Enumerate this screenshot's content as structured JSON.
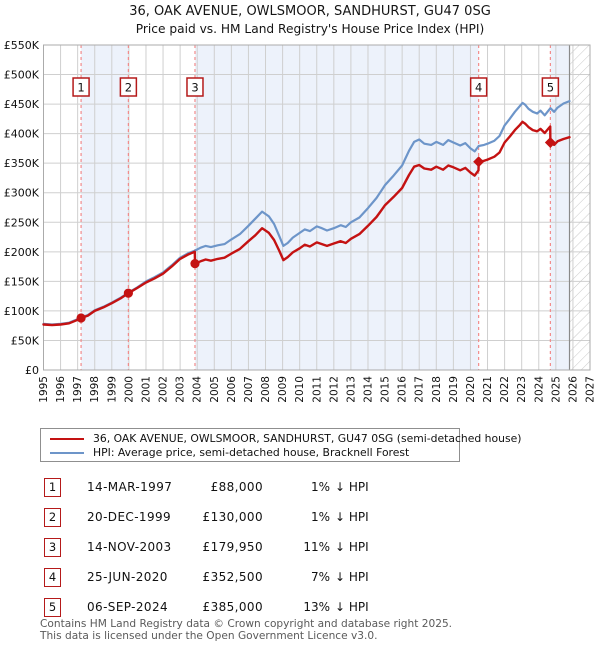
{
  "title": "36, OAK AVENUE, OWLSMOOR, SANDHURST, GU47 0SG",
  "subtitle": "Price paid vs. HM Land Registry's House Price Index (HPI)",
  "chart_data": {
    "type": "line",
    "x_range": [
      1995,
      2027
    ],
    "y_range_k": [
      0,
      550
    ],
    "y_unit": "GBP thousands",
    "grid": true,
    "x_ticks": [
      1995,
      1996,
      1997,
      1998,
      1999,
      2000,
      2001,
      2002,
      2003,
      2004,
      2005,
      2006,
      2007,
      2008,
      2009,
      2010,
      2011,
      2012,
      2013,
      2014,
      2015,
      2016,
      2017,
      2018,
      2019,
      2020,
      2021,
      2022,
      2023,
      2024,
      2025,
      2026,
      2027
    ],
    "y_ticks_k": [
      0,
      50,
      100,
      150,
      200,
      250,
      300,
      350,
      400,
      450,
      500,
      550
    ],
    "y_tick_labels": [
      "£0",
      "£50K",
      "£100K",
      "£150K",
      "£200K",
      "£250K",
      "£300K",
      "£350K",
      "£400K",
      "£450K",
      "£500K",
      "£550K"
    ],
    "series": [
      {
        "name": "HPI: Average price, semi-detached house, Bracknell Forest",
        "color": "#6d95c9",
        "width": 2.2,
        "points": [
          [
            1995,
            78
          ],
          [
            1995.5,
            77
          ],
          [
            1996,
            78
          ],
          [
            1996.5,
            80
          ],
          [
            1997,
            86
          ],
          [
            1997.2,
            89
          ],
          [
            1997.6,
            93
          ],
          [
            1998,
            101
          ],
          [
            1998.5,
            107
          ],
          [
            1999,
            114
          ],
          [
            1999.5,
            122
          ],
          [
            1999.97,
            131
          ],
          [
            2000.5,
            140
          ],
          [
            2001,
            150
          ],
          [
            2001.5,
            157
          ],
          [
            2002,
            165
          ],
          [
            2002.5,
            177
          ],
          [
            2003,
            190
          ],
          [
            2003.5,
            198
          ],
          [
            2003.87,
            202
          ],
          [
            2004.2,
            207
          ],
          [
            2004.5,
            210
          ],
          [
            2004.8,
            208
          ],
          [
            2005.2,
            211
          ],
          [
            2005.6,
            213
          ],
          [
            2006,
            221
          ],
          [
            2006.5,
            230
          ],
          [
            2007,
            244
          ],
          [
            2007.4,
            256
          ],
          [
            2007.8,
            268
          ],
          [
            2008.2,
            260
          ],
          [
            2008.5,
            247
          ],
          [
            2008.8,
            227
          ],
          [
            2009.05,
            210
          ],
          [
            2009.3,
            215
          ],
          [
            2009.6,
            224
          ],
          [
            2010,
            232
          ],
          [
            2010.3,
            238
          ],
          [
            2010.6,
            235
          ],
          [
            2011,
            243
          ],
          [
            2011.3,
            240
          ],
          [
            2011.6,
            236
          ],
          [
            2012,
            240
          ],
          [
            2012.4,
            245
          ],
          [
            2012.7,
            242
          ],
          [
            2013,
            250
          ],
          [
            2013.5,
            258
          ],
          [
            2014,
            274
          ],
          [
            2014.5,
            291
          ],
          [
            2015,
            313
          ],
          [
            2015.5,
            329
          ],
          [
            2016,
            346
          ],
          [
            2016.4,
            371
          ],
          [
            2016.7,
            386
          ],
          [
            2017,
            390
          ],
          [
            2017.3,
            383
          ],
          [
            2017.7,
            381
          ],
          [
            2018,
            386
          ],
          [
            2018.4,
            381
          ],
          [
            2018.7,
            389
          ],
          [
            2019,
            385
          ],
          [
            2019.4,
            380
          ],
          [
            2019.7,
            384
          ],
          [
            2020,
            375
          ],
          [
            2020.25,
            370
          ],
          [
            2020.48,
            379
          ],
          [
            2020.8,
            381
          ],
          [
            2021,
            383
          ],
          [
            2021.4,
            388
          ],
          [
            2021.7,
            396
          ],
          [
            2022,
            414
          ],
          [
            2022.3,
            425
          ],
          [
            2022.6,
            437
          ],
          [
            2022.9,
            447
          ],
          [
            2023.05,
            452
          ],
          [
            2023.2,
            449
          ],
          [
            2023.4,
            442
          ],
          [
            2023.65,
            437
          ],
          [
            2023.9,
            434
          ],
          [
            2024.1,
            439
          ],
          [
            2024.35,
            431
          ],
          [
            2024.68,
            443
          ],
          [
            2024.9,
            437
          ],
          [
            2025.1,
            444
          ],
          [
            2025.45,
            451
          ],
          [
            2025.8,
            455
          ]
        ]
      },
      {
        "name": "36, OAK AVENUE, OWLSMOOR, SANDHURST, GU47 0SG (semi-detached house)",
        "color": "#c41212",
        "width": 2.4,
        "points": [
          [
            1995,
            77
          ],
          [
            1995.5,
            76
          ],
          [
            1996,
            77
          ],
          [
            1996.5,
            79
          ],
          [
            1997,
            85
          ],
          [
            1997.2,
            88
          ],
          [
            1997.6,
            92
          ],
          [
            1998,
            100
          ],
          [
            1998.5,
            106
          ],
          [
            1999,
            113
          ],
          [
            1999.5,
            121
          ],
          [
            1999.97,
            130
          ],
          [
            2000.5,
            139
          ],
          [
            2001,
            148
          ],
          [
            2001.5,
            155
          ],
          [
            2002,
            163
          ],
          [
            2002.5,
            175
          ],
          [
            2003,
            188
          ],
          [
            2003.5,
            196
          ],
          [
            2003.86,
            200
          ],
          [
            2003.87,
            180
          ],
          [
            2004.2,
            184
          ],
          [
            2004.5,
            187
          ],
          [
            2004.8,
            185
          ],
          [
            2005.2,
            188
          ],
          [
            2005.6,
            190
          ],
          [
            2006,
            197
          ],
          [
            2006.5,
            205
          ],
          [
            2007,
            218
          ],
          [
            2007.4,
            228
          ],
          [
            2007.8,
            240
          ],
          [
            2008.2,
            232
          ],
          [
            2008.5,
            220
          ],
          [
            2008.8,
            202
          ],
          [
            2009.05,
            186
          ],
          [
            2009.3,
            191
          ],
          [
            2009.6,
            199
          ],
          [
            2010,
            206
          ],
          [
            2010.3,
            212
          ],
          [
            2010.6,
            209
          ],
          [
            2011,
            216
          ],
          [
            2011.3,
            213
          ],
          [
            2011.6,
            210
          ],
          [
            2012,
            214
          ],
          [
            2012.4,
            218
          ],
          [
            2012.7,
            215
          ],
          [
            2013,
            222
          ],
          [
            2013.5,
            230
          ],
          [
            2014,
            244
          ],
          [
            2014.5,
            259
          ],
          [
            2015,
            279
          ],
          [
            2015.5,
            293
          ],
          [
            2016,
            308
          ],
          [
            2016.4,
            330
          ],
          [
            2016.7,
            344
          ],
          [
            2017,
            347
          ],
          [
            2017.3,
            341
          ],
          [
            2017.7,
            339
          ],
          [
            2018,
            344
          ],
          [
            2018.4,
            339
          ],
          [
            2018.7,
            346
          ],
          [
            2019,
            343
          ],
          [
            2019.4,
            338
          ],
          [
            2019.7,
            342
          ],
          [
            2020,
            334
          ],
          [
            2020.25,
            329
          ],
          [
            2020.47,
            338
          ],
          [
            2020.48,
            352.5
          ],
          [
            2020.8,
            354
          ],
          [
            2021,
            356
          ],
          [
            2021.4,
            361
          ],
          [
            2021.7,
            368
          ],
          [
            2022,
            385
          ],
          [
            2022.3,
            395
          ],
          [
            2022.6,
            406
          ],
          [
            2022.9,
            415
          ],
          [
            2023.05,
            420
          ],
          [
            2023.2,
            417
          ],
          [
            2023.4,
            411
          ],
          [
            2023.65,
            406
          ],
          [
            2023.9,
            404
          ],
          [
            2024.1,
            408
          ],
          [
            2024.35,
            401
          ],
          [
            2024.67,
            412
          ],
          [
            2024.68,
            385
          ],
          [
            2024.9,
            381
          ],
          [
            2025.1,
            387
          ],
          [
            2025.45,
            391
          ],
          [
            2025.8,
            394
          ]
        ]
      }
    ],
    "sales": [
      {
        "n": "1",
        "year": 1997.2,
        "price_k": 88,
        "marker": "circle"
      },
      {
        "n": "2",
        "year": 1999.97,
        "price_k": 130,
        "marker": "circle"
      },
      {
        "n": "3",
        "year": 2003.87,
        "price_k": 180,
        "marker": "circle"
      },
      {
        "n": "4",
        "year": 2020.48,
        "price_k": 352.5,
        "marker": "diamond"
      },
      {
        "n": "5",
        "year": 2024.68,
        "price_k": 385,
        "marker": "diamond"
      }
    ],
    "ownership_bands": [
      [
        1997.2,
        1999.97
      ],
      [
        2003.87,
        2020.48
      ],
      [
        2024.68,
        2025.8
      ]
    ],
    "data_end": 2025.8,
    "colors": {
      "band": "#edf2fb",
      "grid": "#cfcfcf",
      "border": "#ababab",
      "sale_dash": "#f28b8b",
      "hatch": "#c9c9c9",
      "end_line": "#8a8a8a",
      "marker": "#c41212",
      "box_border": "#b51a1a",
      "box_text": "#111111"
    }
  },
  "legend": {
    "items": [
      {
        "label": "36, OAK AVENUE, OWLSMOOR, SANDHURST, GU47 0SG (semi-detached house)",
        "color": "#c41212"
      },
      {
        "label": "HPI: Average price, semi-detached house, Bracknell Forest",
        "color": "#6d95c9"
      }
    ]
  },
  "table": {
    "rows": [
      {
        "num": "1",
        "date": "14-MAR-1997",
        "price": "£88,000",
        "pct": "1%",
        "ref": "↓ HPI"
      },
      {
        "num": "2",
        "date": "20-DEC-1999",
        "price": "£130,000",
        "pct": "1%",
        "ref": "↓ HPI"
      },
      {
        "num": "3",
        "date": "14-NOV-2003",
        "price": "£179,950",
        "pct": "11%",
        "ref": "↓ HPI"
      },
      {
        "num": "4",
        "date": "25-JUN-2020",
        "price": "£352,500",
        "pct": "7%",
        "ref": "↓ HPI"
      },
      {
        "num": "5",
        "date": "06-SEP-2024",
        "price": "£385,000",
        "pct": "13%",
        "ref": "↓ HPI"
      }
    ]
  },
  "footer": {
    "line1": "Contains HM Land Registry data © Crown copyright and database right 2025.",
    "line2": "This data is licensed under the Open Government Licence v3.0."
  }
}
